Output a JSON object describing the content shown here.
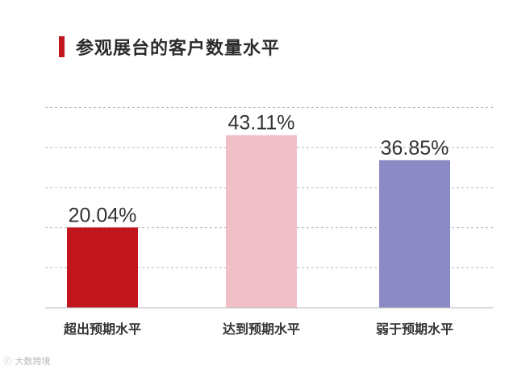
{
  "title": "参观展台的客户数量水平",
  "accent_color": "#c0161c",
  "watermark": "大数跨境",
  "chart_data": {
    "type": "bar",
    "title": "参观展台的客户数量水平",
    "categories": [
      "超出预期水平",
      "达到预期水平",
      "弱于预期水平"
    ],
    "values": [
      20.04,
      43.11,
      36.85
    ],
    "value_labels": [
      "20.04%",
      "43.11%",
      "36.85%"
    ],
    "colors": [
      "#c0161c",
      "#f0c0c9",
      "#8c8ac4"
    ],
    "ylim": [
      0,
      50
    ],
    "grid": true,
    "legend": false
  }
}
